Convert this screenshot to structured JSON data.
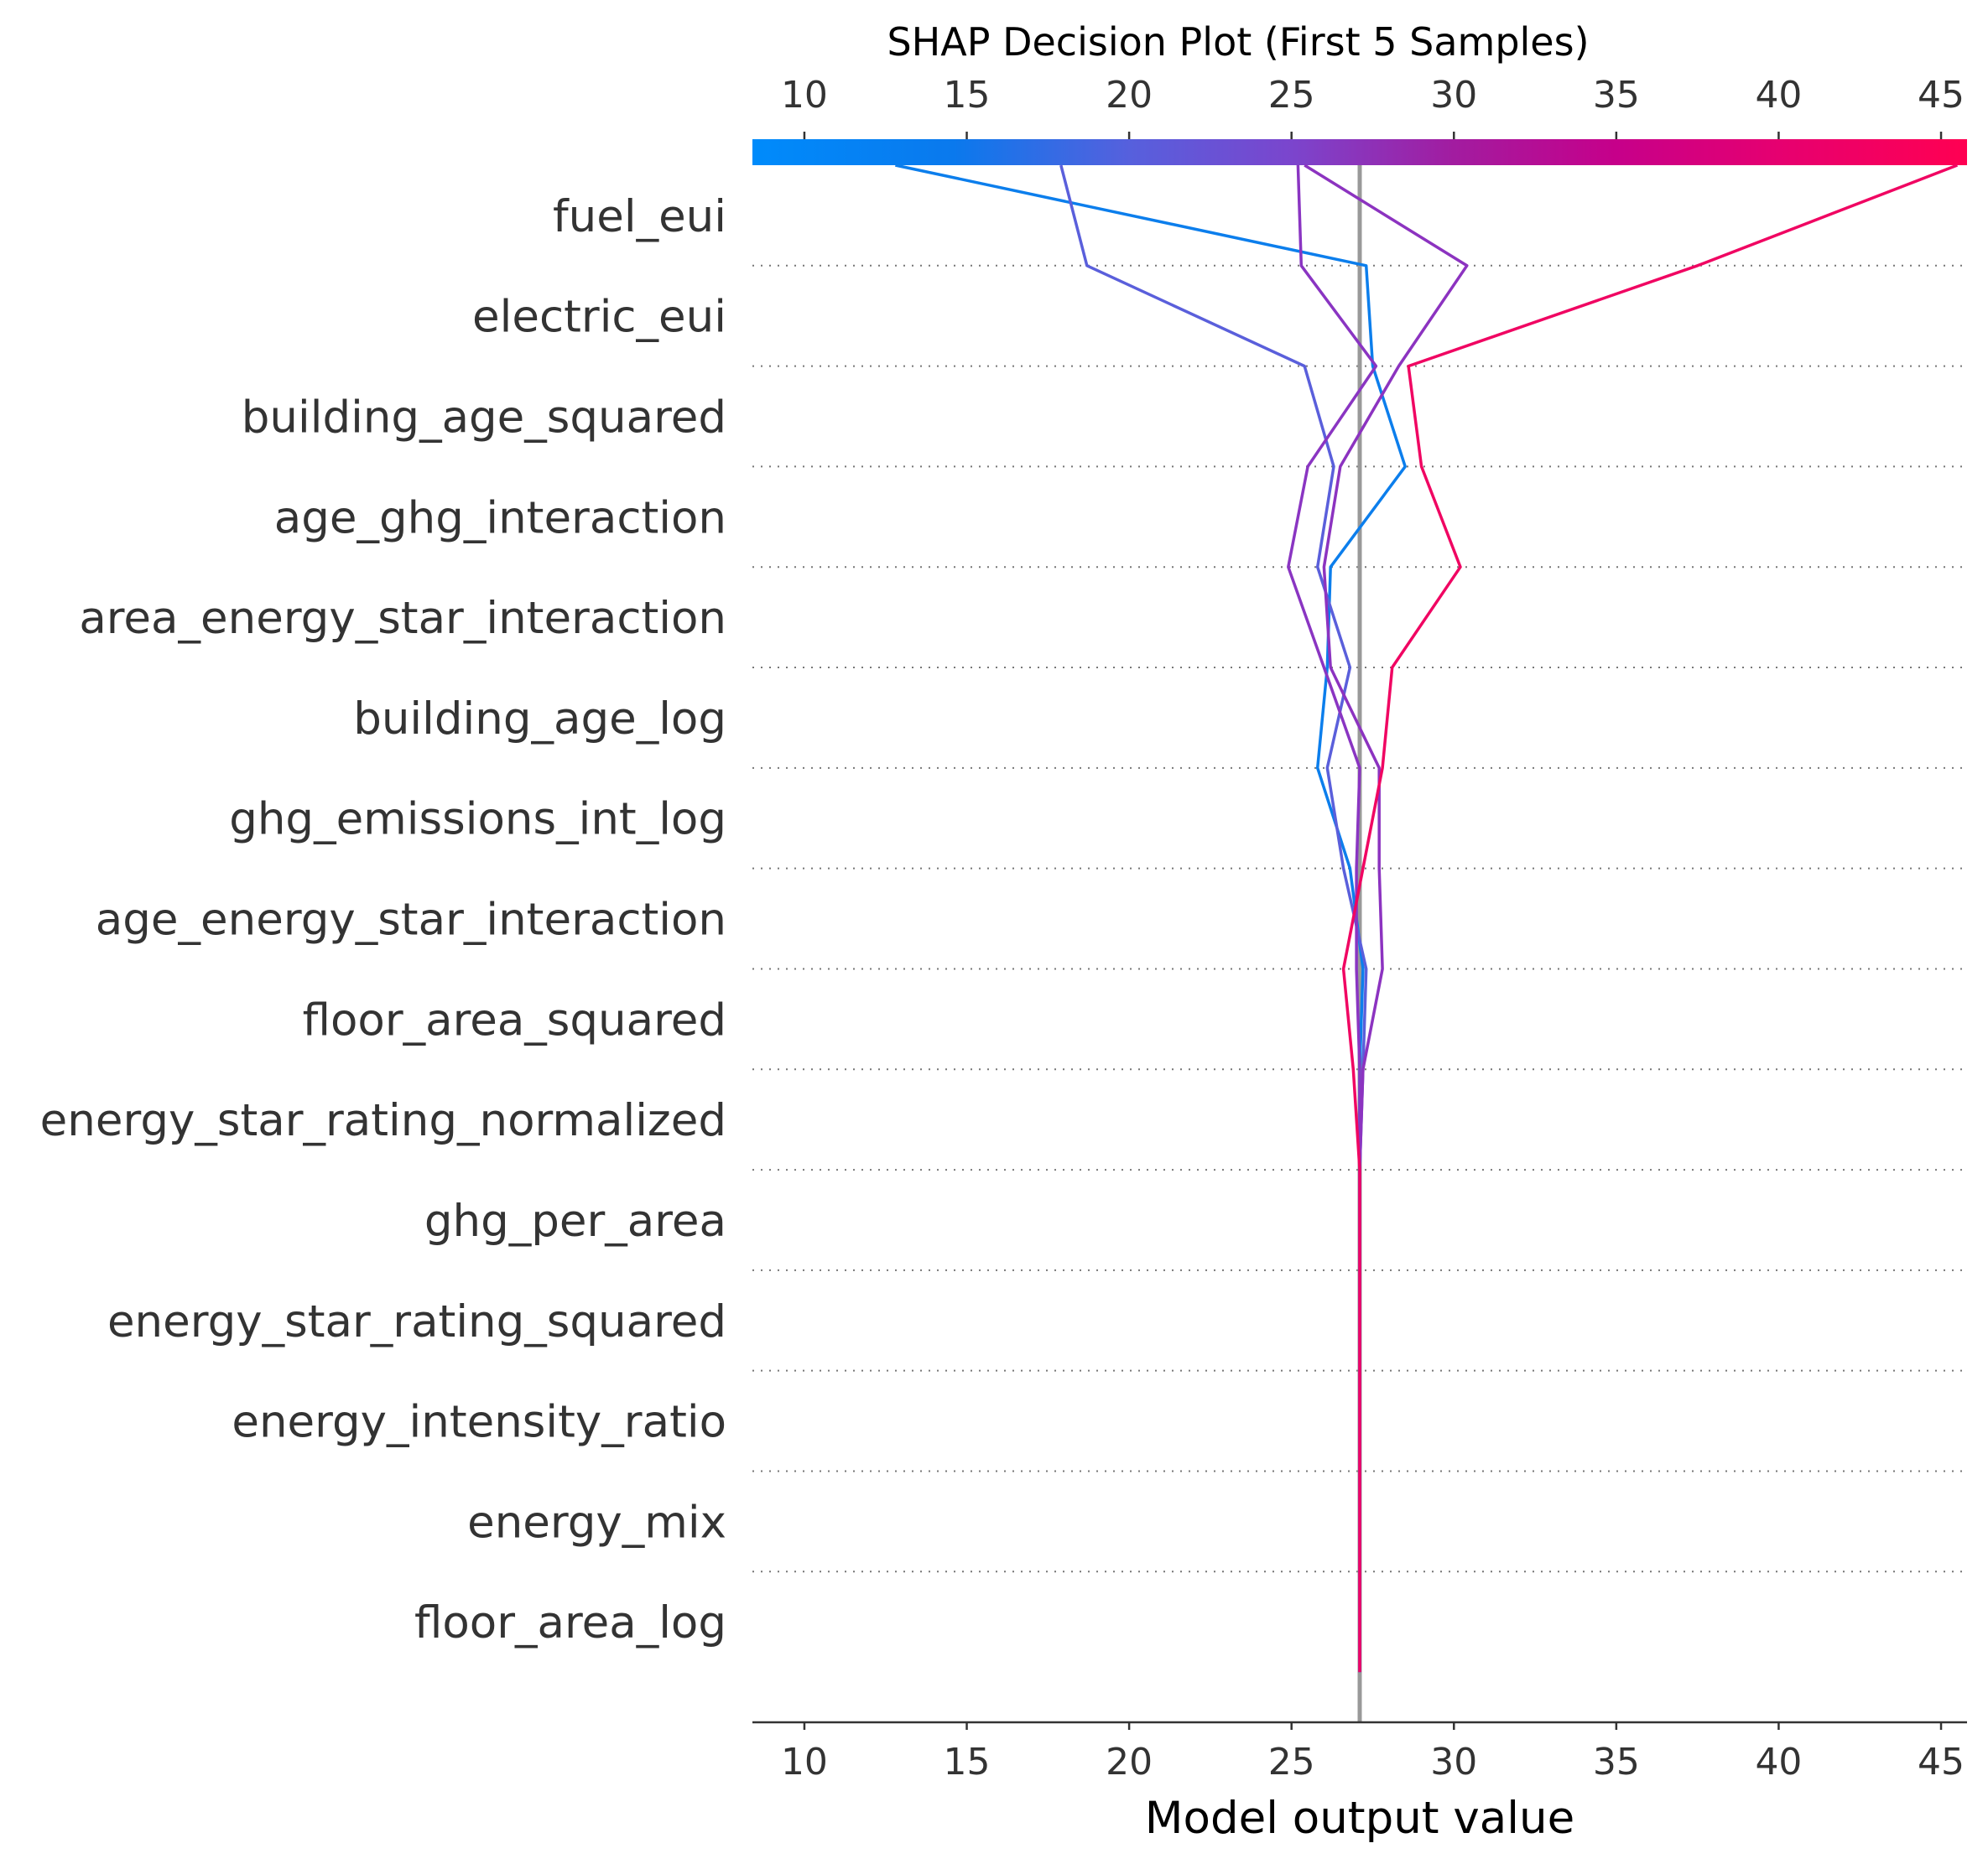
{
  "chart_data": {
    "type": "line",
    "title": "SHAP Decision Plot (First 5 Samples)",
    "xlabel": "Model output value",
    "xlim": [
      8.4,
      45.8
    ],
    "xticks": [
      10,
      15,
      20,
      25,
      30,
      35,
      40,
      45
    ],
    "base_value": 27.1,
    "features": [
      "fuel_eui",
      "electric_eui",
      "building_age_squared",
      "age_ghg_interaction",
      "area_energy_star_interaction",
      "building_age_log",
      "ghg_emissions_int_log",
      "age_energy_star_interaction",
      "floor_area_squared",
      "energy_star_rating_normalized",
      "ghg_per_area",
      "energy_star_rating_squared",
      "energy_intensity_ratio",
      "energy_mix",
      "floor_area_log"
    ],
    "colorbar": {
      "range": [
        8.4,
        45.8
      ],
      "stops": [
        {
          "value": 8.4,
          "color": "#008bfb"
        },
        {
          "value": 14.6,
          "color": "#0a79ed"
        },
        {
          "value": 20.0,
          "color": "#5660dd"
        },
        {
          "value": 25.0,
          "color": "#7b45cd"
        },
        {
          "value": 30.0,
          "color": "#a21ca0"
        },
        {
          "value": 35.0,
          "color": "#c6008a"
        },
        {
          "value": 40.0,
          "color": "#e60070"
        },
        {
          "value": 45.8,
          "color": "#ff0052"
        }
      ]
    },
    "series": [
      {
        "color": "#0c7eec",
        "values": [
          12.8,
          27.3,
          27.5,
          28.5,
          26.2,
          26.1,
          25.8,
          26.8,
          27.2,
          27.1,
          27.1,
          27.1,
          27.1,
          27.1,
          27.1,
          27.1
        ]
      },
      {
        "color": "#5a5fdb",
        "values": [
          17.9,
          18.7,
          25.4,
          26.3,
          25.8,
          26.8,
          26.1,
          26.6,
          27.3,
          27.2,
          27.1,
          27.1,
          27.1,
          27.1,
          27.1,
          27.1
        ]
      },
      {
        "color": "#8a35c2",
        "values": [
          25.2,
          25.3,
          27.6,
          25.5,
          24.9,
          26.0,
          27.1,
          27.0,
          27.0,
          27.1,
          27.1,
          27.1,
          27.1,
          27.1,
          27.1,
          27.1
        ]
      },
      {
        "color": "#8c33c0",
        "values": [
          25.4,
          30.4,
          28.3,
          26.5,
          26.0,
          26.2,
          27.7,
          27.7,
          27.8,
          27.2,
          27.1,
          27.1,
          27.1,
          27.1,
          27.1,
          27.1
        ]
      },
      {
        "color": "#f00562",
        "values": [
          45.5,
          37.5,
          28.6,
          29.0,
          30.2,
          28.1,
          27.8,
          27.2,
          26.6,
          26.9,
          27.1,
          27.1,
          27.1,
          27.1,
          27.1,
          27.1
        ]
      }
    ],
    "grid": "dotted-horizontal",
    "legend": "none"
  }
}
